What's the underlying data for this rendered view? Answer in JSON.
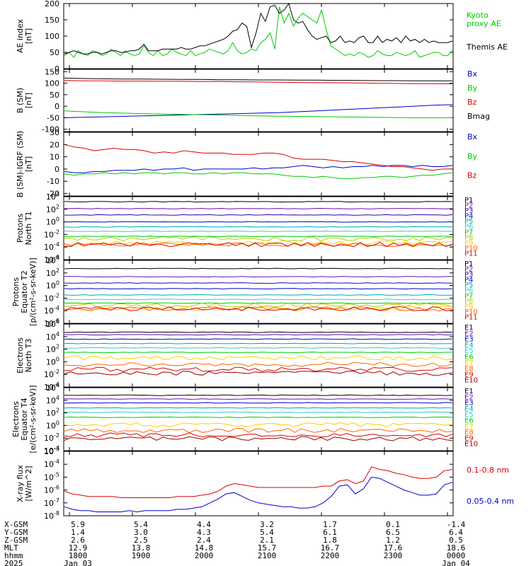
{
  "time_axis": {
    "hhmm": [
      "1800",
      "1900",
      "2000",
      "2100",
      "2200",
      "2300",
      "0000"
    ],
    "rows": [
      {
        "label": "X-GSM",
        "values": [
          "5.9",
          "5.4",
          "4.4",
          "3.2",
          "1.7",
          "0.1",
          "-1.4"
        ]
      },
      {
        "label": "Y-GSM",
        "values": [
          "1.4",
          "3.0",
          "4.3",
          "5.4",
          "6.1",
          "6.5",
          "6.4"
        ]
      },
      {
        "label": "Z-GSM",
        "values": [
          "2.6",
          "2.5",
          "2.4",
          "2.1",
          "1.8",
          "1.2",
          "0.5"
        ]
      },
      {
        "label": "MLT",
        "values": [
          "12.9",
          "13.8",
          "14.8",
          "15.7",
          "16.7",
          "17.6",
          "18.6"
        ]
      },
      {
        "label": "hhmm",
        "values": [
          "1800",
          "1900",
          "2000",
          "2100",
          "2200",
          "2300",
          "0000"
        ]
      }
    ],
    "year_label": "2025",
    "date_start": "Jan 03",
    "date_end": "Jan 04"
  },
  "colors": {
    "black": "#000000",
    "red": "#dd0000",
    "green": "#00cc00",
    "blue": "#0000cc",
    "purple": "#6a0dad",
    "teal": "#00aaaa",
    "cyan": "#33cccc",
    "orange": "#ff9900",
    "yellow": "#e6d200",
    "darkred": "#990000",
    "navy": "#0000aa"
  },
  "chart_data": [
    {
      "id": "ae",
      "type": "line",
      "ylabel": [
        "AE index",
        "[nT]"
      ],
      "ylim": [
        0,
        200
      ],
      "yticks": [
        "0",
        "50",
        "100",
        "150",
        "200"
      ],
      "series": [
        {
          "name": "Kyoto proxy AE",
          "color": "#00cc00",
          "values": [
            40,
            50,
            35,
            55,
            45,
            40,
            55,
            50,
            40,
            45,
            60,
            50,
            40,
            55,
            45,
            40,
            45,
            70,
            50,
            40,
            55,
            40,
            45,
            60,
            50,
            45,
            40,
            55,
            40,
            45,
            50,
            60,
            55,
            50,
            45,
            55,
            80,
            55,
            45,
            50,
            60,
            55,
            80,
            90,
            110,
            60,
            190,
            140,
            170,
            130,
            155,
            170,
            160,
            150,
            140,
            180,
            120,
            70,
            60,
            50,
            40,
            45,
            40,
            50,
            45,
            35,
            40,
            55,
            45,
            40,
            40,
            50,
            45,
            40,
            45,
            55,
            35,
            40,
            45,
            50,
            50,
            40,
            40,
            55
          ]
        },
        {
          "name": "Themis AE",
          "color": "#000000",
          "values": [
            45,
            50,
            55,
            50,
            45,
            45,
            50,
            50,
            45,
            50,
            55,
            55,
            50,
            50,
            55,
            55,
            60,
            75,
            55,
            55,
            55,
            60,
            60,
            60,
            60,
            65,
            60,
            60,
            65,
            70,
            70,
            75,
            80,
            85,
            90,
            100,
            115,
            120,
            140,
            130,
            65,
            110,
            170,
            145,
            190,
            195,
            170,
            180,
            200,
            150,
            140,
            145,
            120,
            100,
            90,
            95,
            100,
            80,
            85,
            100,
            80,
            85,
            80,
            95,
            100,
            80,
            80,
            100,
            80,
            90,
            85,
            95,
            80,
            100,
            85,
            90,
            80,
            90,
            80,
            85,
            80,
            80,
            80,
            85
          ]
        }
      ]
    },
    {
      "id": "bsm",
      "type": "line",
      "ylabel": [
        "B (SM)",
        "[nT]"
      ],
      "ylim": [
        -110,
        160
      ],
      "yticks": [
        "-100",
        "-50",
        "0",
        "50",
        "100",
        "150"
      ],
      "series": [
        {
          "name": "Bx",
          "color": "#0000cc",
          "values": [
            -50,
            -48,
            -46,
            -44,
            -42,
            -40,
            -38,
            -36,
            -34,
            -32,
            -30,
            -28,
            -24,
            -20,
            -16,
            -12,
            -8,
            -4,
            0,
            4,
            7
          ]
        },
        {
          "name": "By",
          "color": "#00cc00",
          "values": [
            -20,
            -24,
            -28,
            -30,
            -32,
            -34,
            -35,
            -37,
            -38,
            -40,
            -42,
            -43,
            -44,
            -45,
            -46,
            -47,
            -48,
            -49,
            -50,
            -50,
            -50
          ]
        },
        {
          "name": "Bz",
          "color": "#dd0000",
          "values": [
            112,
            110,
            110,
            109,
            109,
            108,
            108,
            107,
            107,
            106,
            105,
            104,
            103,
            102,
            102,
            101,
            100,
            99,
            98,
            98,
            97
          ]
        },
        {
          "name": "Bmag",
          "color": "#000000",
          "values": [
            122,
            120,
            119,
            118,
            118,
            117,
            116,
            116,
            115,
            115,
            114,
            114,
            113,
            113,
            112,
            112,
            111,
            111,
            110,
            110,
            110
          ]
        }
      ]
    },
    {
      "id": "bigrf",
      "type": "line",
      "ylabel": [
        "B (SM)-IGRF (SM)",
        "[nT]"
      ],
      "ylim": [
        -22,
        30
      ],
      "yticks": [
        "-20",
        "-10",
        "0",
        "10",
        "20",
        "30"
      ],
      "series": [
        {
          "name": "Bx",
          "color": "#0000cc",
          "values": [
            -2,
            -3,
            -3,
            -2,
            -2,
            -1,
            -1,
            -1,
            0,
            -1,
            0,
            0,
            1,
            -1,
            0,
            0,
            0,
            0,
            0,
            1,
            0,
            1,
            1,
            2,
            3,
            2,
            1,
            2,
            1,
            2,
            2,
            3,
            2,
            3,
            3,
            2,
            3,
            2,
            2,
            3
          ]
        },
        {
          "name": "By",
          "color": "#00cc00",
          "values": [
            -4,
            -5,
            -4,
            -4,
            -3,
            -4,
            -3,
            -4,
            -3,
            -3,
            -4,
            -3,
            -3,
            -4,
            -4,
            -3,
            -4,
            -3,
            -3,
            -4,
            -4,
            -4,
            -5,
            -6,
            -6,
            -7,
            -6,
            -7,
            -8,
            -8,
            -7,
            -7,
            -6,
            -6,
            -7,
            -6,
            -5,
            -5,
            -4,
            -3
          ]
        },
        {
          "name": "Bz",
          "color": "#dd0000",
          "values": [
            20,
            18,
            17,
            15,
            16,
            17,
            16,
            16,
            15,
            13,
            14,
            13,
            15,
            14,
            13,
            13,
            13,
            12,
            12,
            12,
            13,
            13,
            12,
            9,
            8,
            8,
            8,
            7,
            6,
            6,
            5,
            4,
            3,
            2,
            2,
            1,
            0,
            -1,
            0,
            0
          ]
        }
      ]
    },
    {
      "id": "pnorth",
      "type": "line",
      "ylabel": [
        "Protons",
        "North T1"
      ],
      "ylim": [
        -6,
        4
      ],
      "log": true,
      "yticks": [
        "10^-6",
        "10^-4",
        "10^-2",
        "10^0",
        "10^2",
        "10^4"
      ],
      "series": [
        {
          "name": "P1",
          "color": "#000000",
          "level": 3.2
        },
        {
          "name": "P2",
          "color": "#6a0dad",
          "level": 2.1
        },
        {
          "name": "P3",
          "color": "#3300aa",
          "level": 1.1
        },
        {
          "name": "P4",
          "color": "#0000cc",
          "level": 0.0
        },
        {
          "name": "P5",
          "color": "#00aaaa",
          "level": -0.8
        },
        {
          "name": "P6",
          "color": "#33cccc",
          "level": -1.5
        },
        {
          "name": "P7",
          "color": "#00cc00",
          "level": -2.3
        },
        {
          "name": "P8",
          "color": "#b0d000",
          "level": -2.7
        },
        {
          "name": "P9",
          "color": "#ffcc00",
          "level": -3.4
        },
        {
          "name": "P10",
          "color": "#ff6600",
          "level": -3.6
        },
        {
          "name": "P11",
          "color": "#dd0000",
          "level": -3.6
        }
      ]
    },
    {
      "id": "pequator",
      "type": "line",
      "ylabel": [
        "Protons",
        "Equator T2",
        "[p/(cm²-s-sr-keV)]"
      ],
      "ylim": [
        -6,
        4
      ],
      "log": true,
      "yticks": [
        "10^-6",
        "10^-4",
        "10^-2",
        "10^0",
        "10^2",
        "10^4"
      ],
      "series": [
        {
          "name": "P1",
          "color": "#000000",
          "level": 2.7
        },
        {
          "name": "P2",
          "color": "#6a0dad",
          "level": 1.4
        },
        {
          "name": "P3",
          "color": "#3300aa",
          "level": 0.4
        },
        {
          "name": "P4",
          "color": "#0000cc",
          "level": -0.5
        },
        {
          "name": "P5",
          "color": "#00aaaa",
          "level": -1.5
        },
        {
          "name": "P6",
          "color": "#33cccc",
          "level": -2.2
        },
        {
          "name": "P7",
          "color": "#00cc00",
          "level": -2.8
        },
        {
          "name": "P8",
          "color": "#b0d000",
          "level": -3.1
        },
        {
          "name": "P9",
          "color": "#ffcc00",
          "level": -3.6
        },
        {
          "name": "P10",
          "color": "#ff6600",
          "level": -3.7
        },
        {
          "name": "P11",
          "color": "#dd0000",
          "level": -3.7
        }
      ]
    },
    {
      "id": "enorth",
      "type": "line",
      "ylabel": [
        "Electrons",
        "North T3"
      ],
      "ylim": [
        -4,
        6
      ],
      "log": true,
      "yticks": [
        "10^-4",
        "10^-2",
        "10^0",
        "10^2",
        "10^4",
        "10^6"
      ],
      "series": [
        {
          "name": "E1",
          "color": "#000000",
          "level": 4.7
        },
        {
          "name": "E2",
          "color": "#6a0dad",
          "level": 4.3
        },
        {
          "name": "E3",
          "color": "#0000cc",
          "level": 3.6
        },
        {
          "name": "E4",
          "color": "#00aaaa",
          "level": 2.9
        },
        {
          "name": "E5",
          "color": "#33cccc",
          "level": 2.2
        },
        {
          "name": "E6",
          "color": "#00cc00",
          "level": 1.5
        },
        {
          "name": "E7",
          "color": "#ffcc00",
          "level": 0.6
        },
        {
          "name": "E8",
          "color": "#ff6600",
          "level": -0.4
        },
        {
          "name": "E9",
          "color": "#dd0000",
          "level": -1.2
        },
        {
          "name": "E10",
          "color": "#990000",
          "level": -1.8
        }
      ]
    },
    {
      "id": "eequator",
      "type": "line",
      "ylabel": [
        "Electrons",
        "Equator T4",
        "[e/(cm²-s-sr-keV)]"
      ],
      "ylim": [
        -4,
        6
      ],
      "log": true,
      "yticks": [
        "10^-4",
        "10^-2",
        "10^0",
        "10^2",
        "10^4",
        "10^6"
      ],
      "series": [
        {
          "name": "E1",
          "color": "#000000",
          "level": 4.8
        },
        {
          "name": "E2",
          "color": "#6a0dad",
          "level": 4.2
        },
        {
          "name": "E3",
          "color": "#0000cc",
          "level": 3.6
        },
        {
          "name": "E4",
          "color": "#00aaaa",
          "level": 2.8
        },
        {
          "name": "E5",
          "color": "#33cccc",
          "level": 2.1
        },
        {
          "name": "E6",
          "color": "#00cc00",
          "level": 1.3
        },
        {
          "name": "E7",
          "color": "#ffcc00",
          "level": 0.1
        },
        {
          "name": "E8",
          "color": "#ff6600",
          "level": -0.8
        },
        {
          "name": "E9",
          "color": "#dd0000",
          "level": -1.5
        },
        {
          "name": "E10",
          "color": "#990000",
          "level": -2.1
        }
      ]
    },
    {
      "id": "xray",
      "type": "line",
      "ylabel": [
        "X-ray flux",
        "[W/m^2]"
      ],
      "ylim": [
        -8,
        -3
      ],
      "log": true,
      "yticks": [
        "10^-8",
        "10^-7",
        "10^-6",
        "10^-5",
        "10^-4",
        "10^-3"
      ],
      "series": [
        {
          "name": "0.1-0.8 nm",
          "color": "#dd0000",
          "values": [
            -6.1,
            -6.3,
            -6.4,
            -6.5,
            -6.5,
            -6.5,
            -6.5,
            -6.6,
            -6.6,
            -6.6,
            -6.6,
            -6.6,
            -6.6,
            -6.6,
            -6.5,
            -6.5,
            -6.5,
            -6.4,
            -6.3,
            -6.1,
            -5.7,
            -5.5,
            -5.6,
            -5.7,
            -5.8,
            -5.8,
            -5.8,
            -5.8,
            -5.8,
            -5.8,
            -5.8,
            -5.8,
            -5.7,
            -5.7,
            -5.3,
            -5.2,
            -5.5,
            -5.3,
            -4.2,
            -4.4,
            -4.5,
            -4.7,
            -4.8,
            -5.0,
            -5.1,
            -5.1,
            -5.0,
            -4.5,
            -4.4
          ]
        },
        {
          "name": "0.05-0.4 nm",
          "color": "#0000cc",
          "values": [
            -7.3,
            -7.5,
            -7.6,
            -7.6,
            -7.7,
            -7.7,
            -7.7,
            -7.7,
            -7.6,
            -7.7,
            -7.6,
            -7.6,
            -7.6,
            -7.6,
            -7.5,
            -7.5,
            -7.4,
            -7.3,
            -7.0,
            -6.7,
            -6.3,
            -6.2,
            -6.5,
            -6.8,
            -7.0,
            -7.1,
            -7.2,
            -7.3,
            -7.3,
            -7.4,
            -7.4,
            -7.3,
            -7.0,
            -6.5,
            -5.7,
            -5.6,
            -6.3,
            -5.9,
            -5.0,
            -5.1,
            -5.4,
            -5.7,
            -6.0,
            -6.2,
            -6.4,
            -6.4,
            -6.3,
            -5.6,
            -5.4
          ]
        }
      ]
    }
  ]
}
